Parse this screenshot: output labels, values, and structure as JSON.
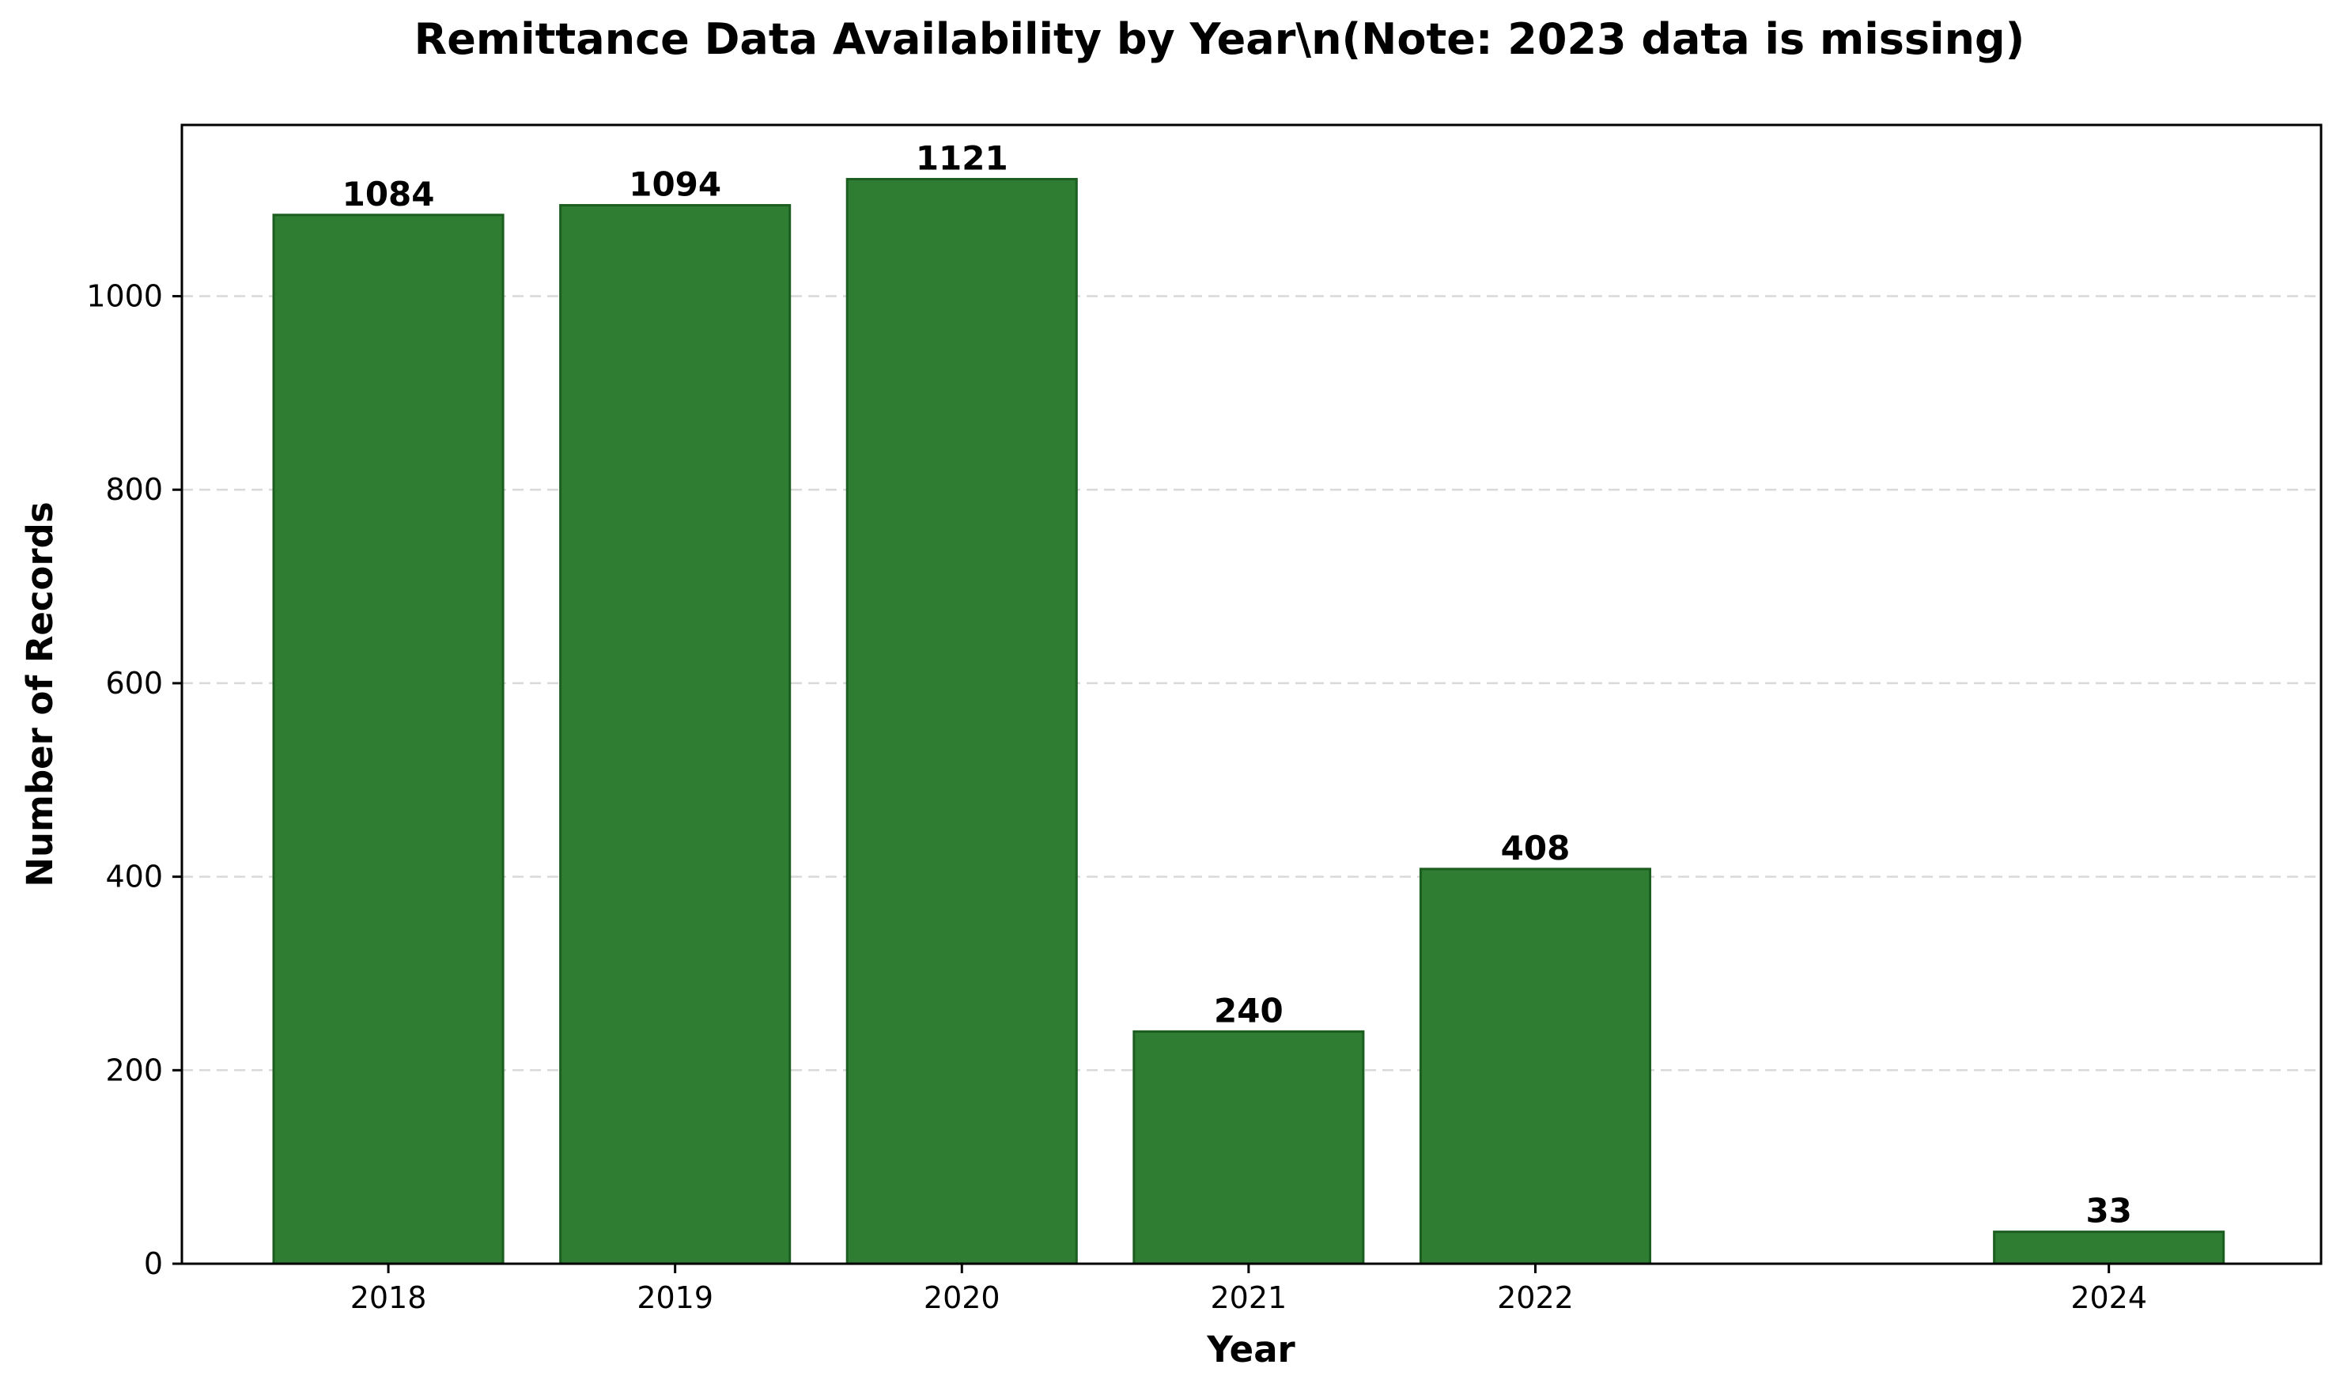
{
  "chart_data": {
    "type": "bar",
    "title": "Remittance Data Availability by Year\\n(Note: 2023 data is missing)",
    "xlabel": "Year",
    "ylabel": "Number of Records",
    "x": [
      2018,
      2019,
      2020,
      2021,
      2022,
      2024
    ],
    "categories": [
      "2018",
      "2019",
      "2020",
      "2021",
      "2022",
      "2024"
    ],
    "values": [
      1084,
      1094,
      1121,
      240,
      408,
      33
    ],
    "data_labels": [
      "1084",
      "1094",
      "1121",
      "240",
      "408",
      "33"
    ],
    "xlim": [
      2017.28,
      2024.74
    ],
    "ylim": [
      0,
      1177
    ],
    "yticks": [
      0,
      200,
      400,
      600,
      800,
      1000
    ],
    "ytick_labels": [
      "0",
      "200",
      "400",
      "600",
      "800",
      "1000"
    ],
    "bar_width": 0.8,
    "grid": {
      "y": true,
      "x": false,
      "style": "dashed"
    },
    "bar_color": "#2e7d32",
    "bar_edge_color": "#1b5e20",
    "legend": "none"
  }
}
